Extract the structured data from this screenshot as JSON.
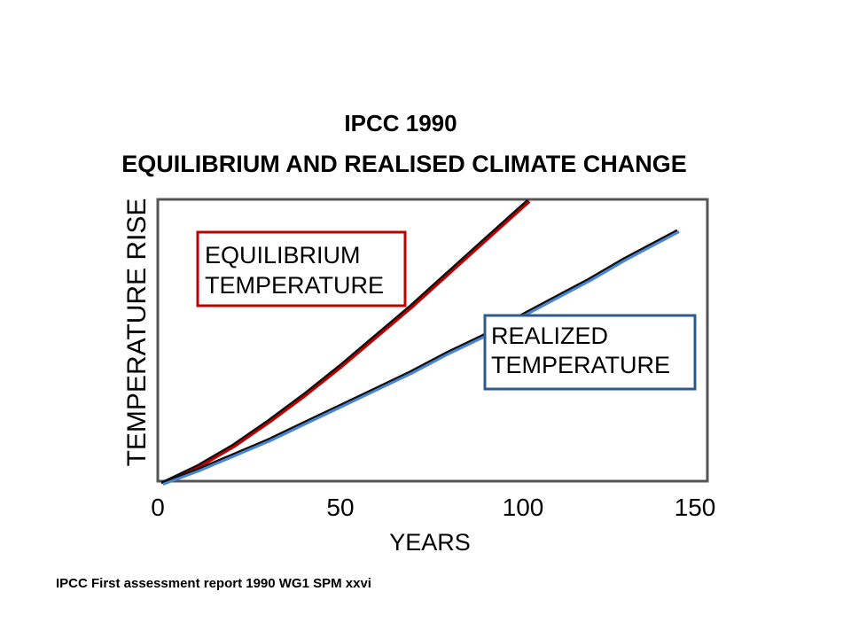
{
  "slide": {
    "title_line1": "IPCC 1990",
    "title_line2": "EQUILIBRIUM AND REALISED CLIMATE CHANGE",
    "source": "IPCC First assessment report 1990 WG1 SPM xxvi"
  },
  "chart_data": {
    "type": "line",
    "xlabel": "YEARS",
    "ylabel": "TEMPERATURE RISE",
    "xlim": [
      0,
      150
    ],
    "x_ticks": [
      0,
      50,
      100,
      150
    ],
    "y_tick_labels": false,
    "grid": false,
    "series": [
      {
        "name": "EQUILIBRIUM TEMPERATURE",
        "color": "#c00000",
        "x": [
          0,
          10,
          20,
          30,
          40,
          50,
          60,
          70,
          80,
          90,
          100,
          103
        ],
        "y": [
          0,
          4.5,
          10,
          16.5,
          23.5,
          31,
          39,
          47,
          55.5,
          64,
          72.5,
          75
        ]
      },
      {
        "name": "REALIZED TEMPERATURE",
        "color": "#4a86d4",
        "x": [
          0,
          10,
          20,
          30,
          40,
          50,
          60,
          70,
          80,
          90,
          100,
          110,
          120,
          130,
          140,
          145
        ],
        "y": [
          0,
          3.5,
          7.5,
          11.5,
          16,
          20.5,
          25,
          29.5,
          34.5,
          39,
          44,
          49,
          54,
          59.5,
          64.5,
          67
        ]
      }
    ],
    "annotations": [
      {
        "line1": "EQUILIBRIUM",
        "line2": "TEMPERATURE",
        "border": "#c00000"
      },
      {
        "line1": "REALIZED",
        "line2": "TEMPERATURE",
        "border": "#2f5b8c"
      }
    ]
  }
}
